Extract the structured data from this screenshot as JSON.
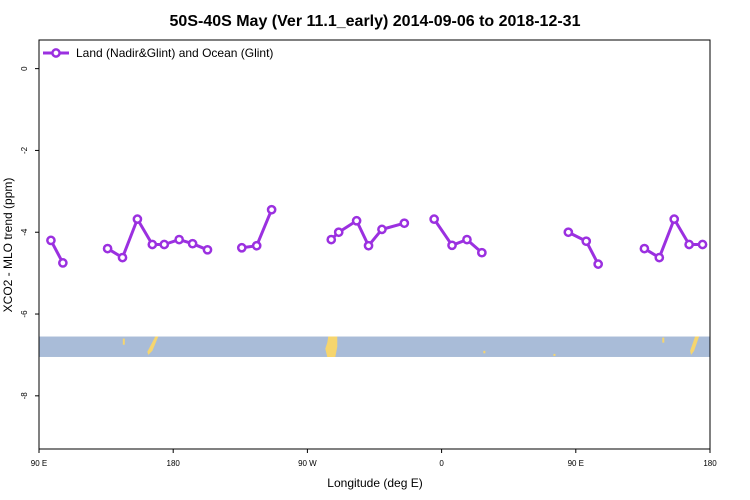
{
  "chart_data": {
    "type": "line",
    "title": "50S-40S May (Ver 11.1_early)   2014-09-06 to 2018-12-31",
    "xlabel": "Longitude (deg E)",
    "ylabel": "XCO2 - MLO trend (ppm)",
    "x_ticks": [
      {
        "value": 90,
        "label": "90 E"
      },
      {
        "value": 180,
        "label": "180"
      },
      {
        "value": 270,
        "label": "90 W"
      },
      {
        "value": 360,
        "label": "0"
      },
      {
        "value": 450,
        "label": "90 E"
      },
      {
        "value": 540,
        "label": "180"
      }
    ],
    "y_ticks": [
      {
        "value": 0,
        "label": "0"
      },
      {
        "value": -2,
        "label": "-2"
      },
      {
        "value": -4,
        "label": "-4"
      },
      {
        "value": -6,
        "label": "-6"
      },
      {
        "value": -8,
        "label": "-8"
      }
    ],
    "xlim": [
      90,
      540
    ],
    "ylim": [
      -9.3,
      0.7
    ],
    "legend_position": "top-left",
    "series": [
      {
        "name": "Land (Nadir&Glint) and Ocean (Glint)",
        "color": "#9b30e0",
        "segments": [
          [
            [
              98,
              -4.2
            ],
            [
              106,
              -4.75
            ]
          ],
          [
            [
              136,
              -4.4
            ],
            [
              146,
              -4.62
            ],
            [
              156,
              -3.68
            ],
            [
              166,
              -4.3
            ],
            [
              174,
              -4.3
            ],
            [
              184,
              -4.18
            ],
            [
              193,
              -4.28
            ],
            [
              203,
              -4.43
            ]
          ],
          [
            [
              226,
              -4.38
            ],
            [
              236,
              -4.33
            ],
            [
              246,
              -3.45
            ]
          ],
          [
            [
              286,
              -4.18
            ],
            [
              291,
              -4.0
            ],
            [
              303,
              -3.72
            ],
            [
              311,
              -4.33
            ],
            [
              320,
              -3.93
            ],
            [
              335,
              -3.78
            ]
          ],
          [
            [
              355,
              -3.68
            ],
            [
              367,
              -4.32
            ],
            [
              377,
              -4.18
            ],
            [
              387,
              -4.5
            ]
          ],
          [
            [
              445,
              -4.0
            ],
            [
              457,
              -4.22
            ],
            [
              465,
              -4.78
            ]
          ],
          [
            [
              496,
              -4.4
            ],
            [
              506,
              -4.62
            ],
            [
              516,
              -3.68
            ],
            [
              526,
              -4.3
            ],
            [
              535,
              -4.3
            ]
          ]
        ]
      }
    ],
    "map_band": {
      "ocean_color": "#a9bcd8",
      "land_color": "#f6d56e",
      "y_top": -6.55,
      "y_bottom": -7.05
    }
  }
}
